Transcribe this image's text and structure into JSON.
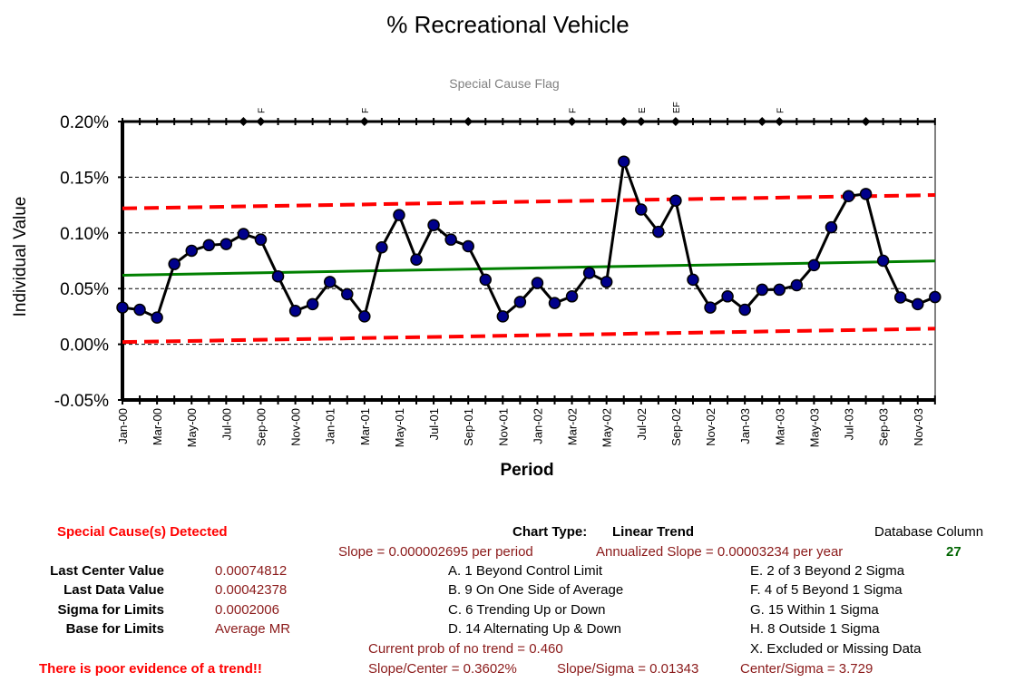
{
  "chart_data": {
    "type": "line",
    "title": "% Recreational Vehicle",
    "flag_title": "Special Cause Flag",
    "xlabel": "Period",
    "ylabel": "Individual Value",
    "ylim": [
      -0.0005,
      0.002
    ],
    "yticks": [
      "0.20%",
      "0.15%",
      "0.10%",
      "0.05%",
      "0.00%",
      "-0.05%"
    ],
    "ytick_values": [
      0.002,
      0.0015,
      0.001,
      0.0005,
      0.0,
      -0.0005
    ],
    "periods": [
      "Jan-00",
      "Feb-00",
      "Mar-00",
      "Apr-00",
      "May-00",
      "Jun-00",
      "Jul-00",
      "Aug-00",
      "Sep-00",
      "Oct-00",
      "Nov-00",
      "Dec-00",
      "Jan-01",
      "Feb-01",
      "Mar-01",
      "Apr-01",
      "May-01",
      "Jun-01",
      "Jul-01",
      "Aug-01",
      "Sep-01",
      "Oct-01",
      "Nov-01",
      "Dec-01",
      "Jan-02",
      "Feb-02",
      "Mar-02",
      "Apr-02",
      "May-02",
      "Jun-02",
      "Jul-02",
      "Aug-02",
      "Sep-02",
      "Oct-02",
      "Nov-02",
      "Dec-02",
      "Jan-03",
      "Feb-03",
      "Mar-03",
      "Apr-03",
      "May-03",
      "Jun-03",
      "Jul-03",
      "Aug-03",
      "Sep-03",
      "Oct-03",
      "Nov-03",
      "Dec-03"
    ],
    "xtick_labels": [
      "Jan-00",
      "Mar-00",
      "May-00",
      "Jul-00",
      "Sep-00",
      "Nov-00",
      "Jan-01",
      "Mar-01",
      "May-01",
      "Jul-01",
      "Sep-01",
      "Nov-01",
      "Jan-02",
      "Mar-02",
      "May-02",
      "Jul-02",
      "Sep-02",
      "Nov-02",
      "Jan-03",
      "Mar-03",
      "May-03",
      "Jul-03",
      "Sep-03",
      "Nov-03"
    ],
    "values": [
      0.00033,
      0.00031,
      0.00024,
      0.00072,
      0.00084,
      0.00089,
      0.0009,
      0.00099,
      0.00094,
      0.00061,
      0.0003,
      0.00036,
      0.00056,
      0.00045,
      0.00025,
      0.00087,
      0.00116,
      0.00076,
      0.00107,
      0.00094,
      0.00088,
      0.00058,
      0.00025,
      0.00038,
      0.00055,
      0.00037,
      0.00043,
      0.00064,
      0.00056,
      0.00164,
      0.00121,
      0.00101,
      0.00129,
      0.00058,
      0.00033,
      0.00043,
      0.00031,
      0.00049,
      0.00049,
      0.00053,
      0.00071,
      0.00105,
      0.00133,
      0.00135,
      0.00075,
      0.00042,
      0.00036,
      0.00042378
    ],
    "center_line": {
      "start": 0.00062,
      "end": 0.00074812,
      "color": "#008000"
    },
    "ucl": {
      "start": 0.00122,
      "end": 0.00134,
      "color": "#ff0000"
    },
    "lcl": {
      "start": 2e-05,
      "end": 0.00014,
      "color": "#ff0000"
    },
    "flag_markers": [
      7,
      8,
      14,
      20,
      26,
      29,
      30,
      32,
      37,
      38,
      43
    ],
    "flag_labels": [
      {
        "index": 8,
        "label": "F"
      },
      {
        "index": 14,
        "label": "F"
      },
      {
        "index": 26,
        "label": "F"
      },
      {
        "index": 30,
        "label": "E"
      },
      {
        "index": 32,
        "label": "EF"
      },
      {
        "index": 38,
        "label": "F"
      }
    ],
    "grid": true,
    "colors": {
      "line": "#000000",
      "marker": "#00008b"
    }
  },
  "summary": {
    "special_cause": "Special Cause(s) Detected",
    "chart_type_label": "Chart Type:",
    "chart_type_value": "Linear Trend",
    "db_column_label": "Database Column",
    "db_column_value": "27",
    "slope": "Slope = 0.000002695 per period",
    "annualized_slope": "Annualized Slope = 0.00003234 per year",
    "last_center_label": "Last Center Value",
    "last_center_value": "0.00074812",
    "last_data_label": "Last Data Value",
    "last_data_value": "0.00042378",
    "sigma_label": "Sigma for Limits",
    "sigma_value": "0.0002006",
    "base_label": "Base for Limits",
    "base_value": "Average MR",
    "rules_left": [
      "A. 1 Beyond Control Limit",
      "B. 9 On One Side of Average",
      "C. 6 Trending Up or Down",
      "D. 14 Alternating  Up & Down"
    ],
    "rules_right": [
      "E.  2 of 3 Beyond 2 Sigma",
      "F.  4 of 5 Beyond 1 Sigma",
      "G.  15 Within 1 Sigma",
      "H.  8 Outside 1 Sigma",
      "X.  Excluded or Missing Data"
    ],
    "prob_no_trend": "Current prob of no trend = 0.460",
    "slope_center": "Slope/Center = 0.3602%",
    "slope_sigma": "Slope/Sigma = 0.01343",
    "center_sigma": "Center/Sigma = 3.729",
    "trend_evidence": "There is poor evidence of a trend!!"
  }
}
